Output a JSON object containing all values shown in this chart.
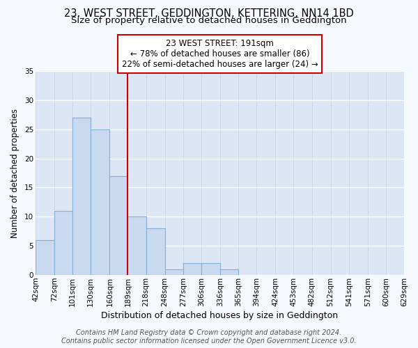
{
  "title": "23, WEST STREET, GEDDINGTON, KETTERING, NN14 1BD",
  "subtitle": "Size of property relative to detached houses in Geddington",
  "xlabel": "Distribution of detached houses by size in Geddington",
  "ylabel": "Number of detached properties",
  "bin_edges": [
    42,
    72,
    101,
    130,
    160,
    189,
    218,
    248,
    277,
    306,
    336,
    365,
    394,
    424,
    453,
    482,
    512,
    541,
    571,
    600,
    629
  ],
  "counts": [
    6,
    11,
    27,
    25,
    17,
    10,
    8,
    1,
    2,
    2,
    1,
    0,
    0,
    0,
    0,
    0,
    0,
    0,
    0,
    0
  ],
  "bar_color": "#c9daf0",
  "bar_edge_color": "#85aed4",
  "vline_x": 189,
  "vline_color": "#cc0000",
  "annotation_line1": "23 WEST STREET: 191sqm",
  "annotation_line2": "← 78% of detached houses are smaller (86)",
  "annotation_line3": "22% of semi-detached houses are larger (24) →",
  "annotation_box_color": "#ffffff",
  "annotation_box_edge_color": "#cc0000",
  "ylim": [
    0,
    35
  ],
  "yticks": [
    0,
    5,
    10,
    15,
    20,
    25,
    30,
    35
  ],
  "plot_bg_color": "#dce6f5",
  "fig_bg_color": "#f5f8fd",
  "footer_line1": "Contains HM Land Registry data © Crown copyright and database right 2024.",
  "footer_line2": "Contains public sector information licensed under the Open Government Licence v3.0.",
  "title_fontsize": 10.5,
  "subtitle_fontsize": 9.5,
  "xlabel_fontsize": 9,
  "ylabel_fontsize": 8.5,
  "tick_fontsize": 7.5,
  "annotation_fontsize": 8.5,
  "footer_fontsize": 7
}
